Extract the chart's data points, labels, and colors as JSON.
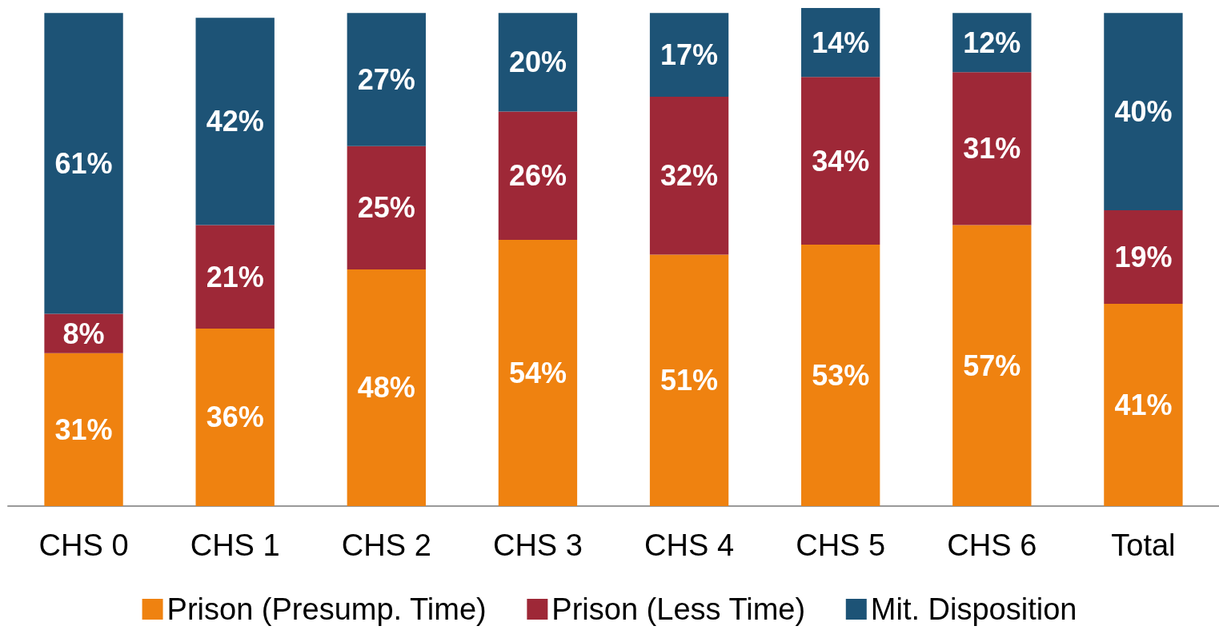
{
  "chart_data": {
    "type": "bar",
    "stacked": true,
    "legend": "bottom",
    "categories": [
      "CHS 0",
      "CHS 1",
      "CHS 2",
      "CHS 3",
      "CHS 4",
      "CHS 5",
      "CHS 6",
      "Total"
    ],
    "series": [
      {
        "name": "Prison (Presump. Time)",
        "color": "#ef8210",
        "values": [
          31,
          36,
          48,
          54,
          51,
          53,
          57,
          41
        ],
        "value_labels": [
          "31%",
          "36%",
          "48%",
          "54%",
          "51%",
          "53%",
          "57%",
          "41%"
        ]
      },
      {
        "name": "Prison (Less Time)",
        "color": "#9e2837",
        "values": [
          8,
          21,
          25,
          26,
          32,
          34,
          31,
          19
        ],
        "value_labels": [
          "8%",
          "21%",
          "25%",
          "26%",
          "32%",
          "34%",
          "31%",
          "19%"
        ]
      },
      {
        "name": "Mit. Disposition",
        "color": "#1d5376",
        "values": [
          61,
          42,
          27,
          20,
          17,
          14,
          12,
          40
        ],
        "value_labels": [
          "61%",
          "42%",
          "27%",
          "20%",
          "17%",
          "14%",
          "12%",
          "40%"
        ]
      }
    ]
  }
}
